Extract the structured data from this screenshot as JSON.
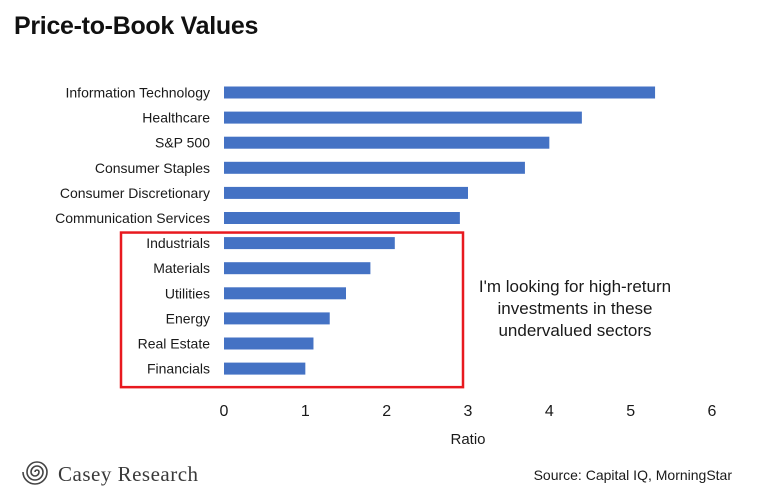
{
  "chart_data": {
    "type": "bar",
    "orientation": "horizontal",
    "title": "Price-to-Book Values",
    "xlabel": "Ratio",
    "ylabel": "",
    "xlim": [
      0,
      6
    ],
    "xticks": [
      0,
      1,
      2,
      3,
      4,
      5,
      6
    ],
    "grid": false,
    "categories": [
      "Information Technology",
      "Healthcare",
      "S&P 500",
      "Consumer Staples",
      "Consumer Discretionary",
      "Communication Services",
      "Industrials",
      "Materials",
      "Utilities",
      "Energy",
      "Real Estate",
      "Financials"
    ],
    "values": [
      5.3,
      4.4,
      4.0,
      3.7,
      3.0,
      2.9,
      2.1,
      1.8,
      1.5,
      1.3,
      1.1,
      1.0
    ],
    "bar_color": "#4472C4",
    "highlight": {
      "categories": [
        "Industrials",
        "Materials",
        "Utilities",
        "Energy",
        "Real Estate",
        "Financials"
      ],
      "color": "#E8191F"
    },
    "annotation": "I'm looking for high-return investments in these undervalued sectors"
  },
  "footer": {
    "logo_text": "Casey Research",
    "logo_icon": "spiral-logo-icon",
    "source": "Source: Capital IQ, MorningStar"
  }
}
